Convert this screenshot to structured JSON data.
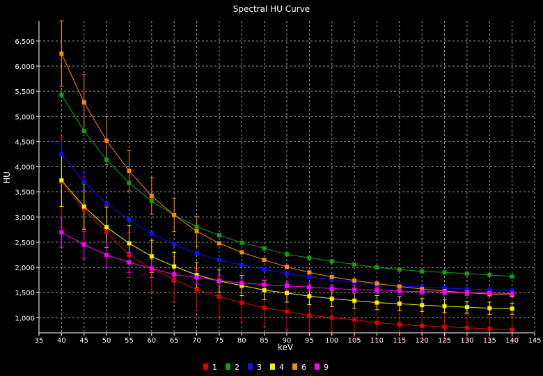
{
  "chart_data": {
    "type": "line",
    "title": "Spectral HU Curve",
    "xlabel": "keV",
    "ylabel": "HU",
    "xlim": [
      35,
      145
    ],
    "ylim": [
      700,
      6900
    ],
    "x_ticks": [
      35,
      40,
      45,
      50,
      55,
      60,
      65,
      70,
      75,
      80,
      85,
      90,
      95,
      100,
      105,
      110,
      115,
      120,
      125,
      130,
      135,
      140,
      145
    ],
    "y_ticks": [
      1000,
      1500,
      2000,
      2500,
      3000,
      3500,
      4000,
      4500,
      5000,
      5500,
      6000,
      6500
    ],
    "y_tick_labels": [
      "1,000",
      "1,500",
      "2,000",
      "2,500",
      "3,000",
      "3,500",
      "4,000",
      "4,500",
      "5,000",
      "5,500",
      "6,000",
      "6,500"
    ],
    "grid": true,
    "legend_position": "bottom",
    "x": [
      40,
      45,
      50,
      55,
      60,
      65,
      70,
      75,
      80,
      85,
      90,
      95,
      100,
      105,
      110,
      115,
      120,
      125,
      130,
      135,
      140
    ],
    "series": [
      {
        "name": "1",
        "color": "#e00000",
        "values": [
          3700,
          3150,
          2700,
          2250,
          1970,
          1760,
          1560,
          1420,
          1300,
          1200,
          1120,
          1050,
          1000,
          960,
          900,
          870,
          840,
          820,
          800,
          780,
          760
        ],
        "errors": [
          900,
          650,
          520,
          450,
          450,
          450,
          420,
          400,
          380,
          370,
          360,
          350,
          340,
          330,
          320,
          310,
          300,
          290,
          280,
          280,
          270
        ]
      },
      {
        "name": "2",
        "color": "#10a010",
        "values": [
          5430,
          4710,
          4140,
          3680,
          3320,
          3040,
          2810,
          2640,
          2490,
          2380,
          2260,
          2190,
          2120,
          2060,
          2000,
          1960,
          1920,
          1900,
          1880,
          1850,
          1820
        ],
        "errors": [
          0,
          0,
          0,
          0,
          0,
          0,
          0,
          0,
          0,
          0,
          0,
          0,
          0,
          0,
          0,
          0,
          0,
          0,
          0,
          0,
          0
        ]
      },
      {
        "name": "3",
        "color": "#1010ff",
        "values": [
          4250,
          3700,
          3270,
          2940,
          2670,
          2460,
          2280,
          2150,
          2050,
          1960,
          1880,
          1810,
          1760,
          1700,
          1660,
          1630,
          1610,
          1590,
          1570,
          1560,
          1540
        ],
        "errors": [
          250,
          170,
          0,
          0,
          0,
          0,
          0,
          0,
          0,
          0,
          0,
          0,
          0,
          0,
          0,
          0,
          0,
          0,
          0,
          0,
          0
        ]
      },
      {
        "name": "4",
        "color": "#f0f000",
        "values": [
          3730,
          3210,
          2800,
          2480,
          2220,
          2020,
          1850,
          1730,
          1640,
          1550,
          1490,
          1430,
          1380,
          1340,
          1300,
          1280,
          1250,
          1230,
          1210,
          1190,
          1180
        ],
        "errors": [
          520,
          450,
          400,
          360,
          320,
          280,
          250,
          220,
          200,
          190,
          180,
          170,
          160,
          150,
          140,
          140,
          130,
          130,
          120,
          120,
          110
        ]
      },
      {
        "name": "6",
        "color": "#ff8a00",
        "values": [
          6250,
          5280,
          4520,
          3920,
          3420,
          3040,
          2720,
          2480,
          2300,
          2150,
          2010,
          1900,
          1810,
          1740,
          1680,
          1620,
          1570,
          1530,
          1500,
          1470,
          1450
        ],
        "errors": [
          650,
          550,
          480,
          400,
          360,
          330,
          300,
          0,
          0,
          0,
          0,
          0,
          0,
          0,
          0,
          0,
          0,
          0,
          0,
          0,
          0
        ]
      },
      {
        "name": "9",
        "color": "#ff00ff",
        "values": [
          2700,
          2450,
          2250,
          2100,
          1980,
          1860,
          1800,
          1740,
          1690,
          1660,
          1630,
          1610,
          1580,
          1560,
          1550,
          1530,
          1520,
          1510,
          1500,
          1490,
          1480
        ],
        "errors": [
          300,
          270,
          250,
          200,
          180,
          150,
          130,
          110,
          100,
          90,
          80,
          80,
          70,
          70,
          60,
          60,
          60,
          60,
          60,
          60,
          60
        ]
      }
    ]
  }
}
